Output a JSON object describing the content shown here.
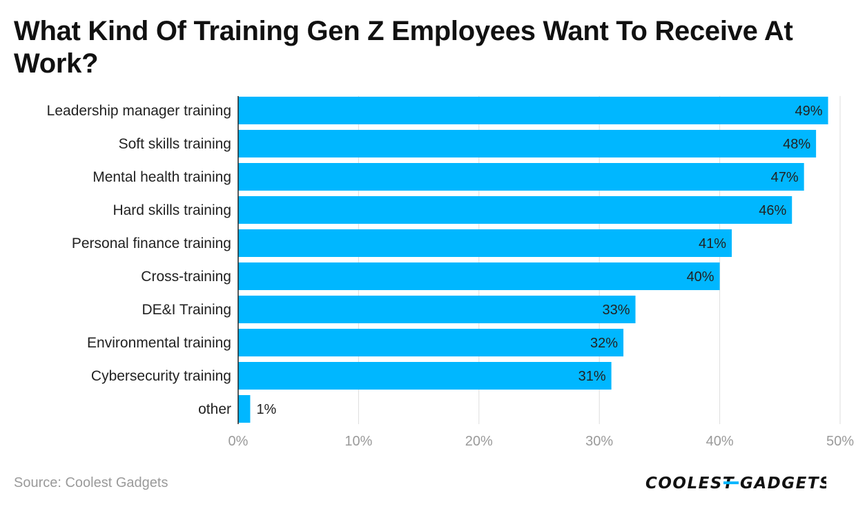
{
  "title": "What Kind Of Training Gen Z Employees Want To Receive At Work?",
  "chart_data": {
    "type": "bar",
    "orientation": "horizontal",
    "categories": [
      "Leadership manager training",
      "Soft skills training",
      "Mental health training",
      "Hard skills training",
      "Personal finance training",
      "Cross-training",
      "DE&I Training",
      "Environmental training",
      "Cybersecurity training",
      "other"
    ],
    "values": [
      49,
      48,
      47,
      46,
      41,
      40,
      33,
      32,
      31,
      1
    ],
    "value_labels": [
      "49%",
      "48%",
      "47%",
      "46%",
      "41%",
      "40%",
      "33%",
      "32%",
      "31%",
      "1%"
    ],
    "xlim": [
      0,
      50
    ],
    "x_ticks": [
      0,
      10,
      20,
      30,
      40,
      50
    ],
    "x_tick_labels": [
      "0%",
      "10%",
      "20%",
      "30%",
      "40%",
      "50%"
    ],
    "grid": true,
    "legend": "none",
    "bar_color": "#00b7ff"
  },
  "source": "Source: Coolest Gadgets",
  "logo_text": "COOLEST-GADGETS",
  "colors": {
    "bar": "#00b7ff",
    "grid": "#dddddd",
    "axis": "#222222",
    "text": "#222222",
    "tick": "#9a9a9a"
  }
}
